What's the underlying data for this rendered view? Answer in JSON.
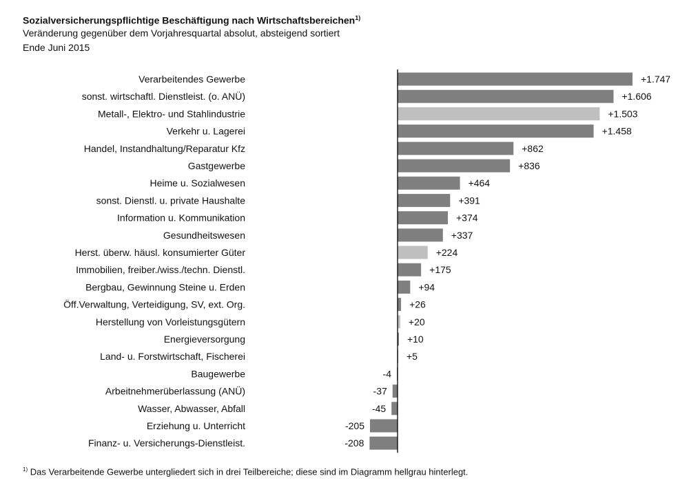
{
  "chart_data": {
    "type": "bar",
    "orientation": "horizontal",
    "title": "Sozialversicherungspflichtige Beschäftigung nach Wirtschaftsbereichen",
    "title_footnote_mark": "1)",
    "subtitle": "Veränderung gegenüber dem Vorjahresquartal absolut, absteigend sortiert",
    "period": "Ende Juni 2015",
    "categories": [
      "Verarbeitendes Gewerbe",
      "sonst. wirtschaftl. Dienstleist. (o. ANÜ)",
      "Metall-, Elektro- und Stahlindustrie",
      "Verkehr u. Lagerei",
      "Handel, Instandhaltung/Reparatur Kfz",
      "Gastgewerbe",
      "Heime u. Sozialwesen",
      "sonst. Dienstl. u. private Haushalte",
      "Information u. Kommunikation",
      "Gesundheitswesen",
      "Herst. überw. häusl. konsumierter Güter",
      "Immobilien, freiber./wiss./techn. Dienstl.",
      "Bergbau, Gewinnung Steine u. Erden",
      "Öff.Verwaltung, Verteidigung, SV, ext. Org.",
      "Herstellung von Vorleistungsgütern",
      "Energieversorgung",
      "Land- u. Forstwirtschaft, Fischerei",
      "Baugewerbe",
      "Arbeitnehmerüberlassung (ANÜ)",
      "Wasser, Abwasser, Abfall",
      "Erziehung u. Unterricht",
      "Finanz- u. Versicherungs-Dienstleist."
    ],
    "values": [
      1747,
      1606,
      1503,
      1458,
      862,
      836,
      464,
      391,
      374,
      337,
      224,
      175,
      94,
      26,
      20,
      10,
      5,
      -4,
      -37,
      -45,
      -205,
      -208
    ],
    "value_labels": [
      "+1.747",
      "+1.606",
      "+1.503",
      "+1.458",
      "+862",
      "+836",
      "+464",
      "+391",
      "+374",
      "+337",
      "+224",
      "+175",
      "+94",
      "+26",
      "+20",
      "+10",
      "+5",
      "-4",
      "-37",
      "-45",
      "-205",
      "-208"
    ],
    "highlighted": [
      false,
      false,
      true,
      false,
      false,
      false,
      false,
      false,
      false,
      false,
      true,
      false,
      false,
      false,
      true,
      false,
      false,
      false,
      false,
      false,
      false,
      false
    ],
    "colors": {
      "default": "#7f7f7f",
      "highlighted": "#bfbfbf",
      "axis": "#000000"
    },
    "xlim": [
      -208,
      1747
    ],
    "grid": false
  },
  "footnote": {
    "mark": "1)",
    "text": "Das Verarbeitende Gewerbe  untergliedert sich in drei  Teilbereiche; diese sind im Diagramm hellgrau hinterlegt."
  }
}
